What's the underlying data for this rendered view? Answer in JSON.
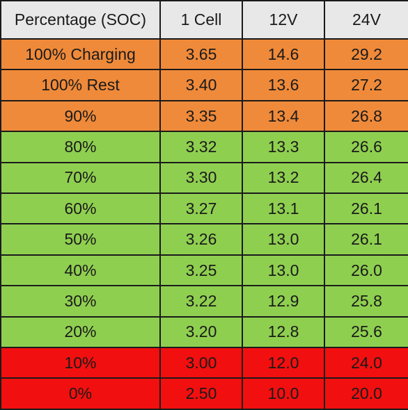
{
  "colors": {
    "header": "#e8e8e8",
    "orange": "#ef8a3a",
    "green": "#8fcf50",
    "red": "#f20f0f",
    "border": "#1a1a1a"
  },
  "headers": [
    "Percentage (SOC)",
    "1 Cell",
    "12V",
    "24V"
  ],
  "rows": [
    {
      "soc": "100% Charging",
      "cell": "3.65",
      "v12": "14.6",
      "v24": "29.2",
      "band": "orange"
    },
    {
      "soc": "100% Rest",
      "cell": "3.40",
      "v12": "13.6",
      "v24": "27.2",
      "band": "orange"
    },
    {
      "soc": "90%",
      "cell": "3.35",
      "v12": "13.4",
      "v24": "26.8",
      "band": "orange"
    },
    {
      "soc": "80%",
      "cell": "3.32",
      "v12": "13.3",
      "v24": "26.6",
      "band": "green"
    },
    {
      "soc": "70%",
      "cell": "3.30",
      "v12": "13.2",
      "v24": "26.4",
      "band": "green"
    },
    {
      "soc": "60%",
      "cell": "3.27",
      "v12": "13.1",
      "v24": "26.1",
      "band": "green"
    },
    {
      "soc": "50%",
      "cell": "3.26",
      "v12": "13.0",
      "v24": "26.1",
      "band": "green"
    },
    {
      "soc": "40%",
      "cell": "3.25",
      "v12": "13.0",
      "v24": "26.0",
      "band": "green"
    },
    {
      "soc": "30%",
      "cell": "3.22",
      "v12": "12.9",
      "v24": "25.8",
      "band": "green"
    },
    {
      "soc": "20%",
      "cell": "3.20",
      "v12": "12.8",
      "v24": "25.6",
      "band": "green"
    },
    {
      "soc": "10%",
      "cell": "3.00",
      "v12": "12.0",
      "v24": "24.0",
      "band": "red"
    },
    {
      "soc": "0%",
      "cell": "2.50",
      "v12": "10.0",
      "v24": "20.0",
      "band": "red"
    }
  ]
}
